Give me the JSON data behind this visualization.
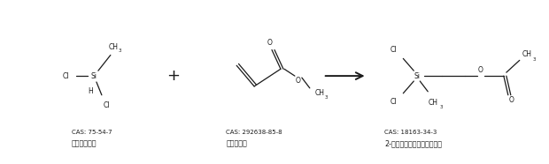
{
  "background_color": "#ffffff",
  "fig_width": 6.2,
  "fig_height": 1.86,
  "dpi": 100,
  "cas1": "CAS: 75-54-7",
  "name1": "甲基二氯硅烷",
  "cas2": "CAS: 292638-85-8",
  "name2": "丙烯酸甲酯",
  "cas3": "CAS: 18163-34-3",
  "name3": "2-乙酰氧基乙基甲基二氯硅烷",
  "text_color": "#1a1a1a",
  "line_color": "#1a1a1a",
  "font_size_cas": 5.0,
  "font_size_name": 5.8,
  "font_size_atom": 5.5
}
